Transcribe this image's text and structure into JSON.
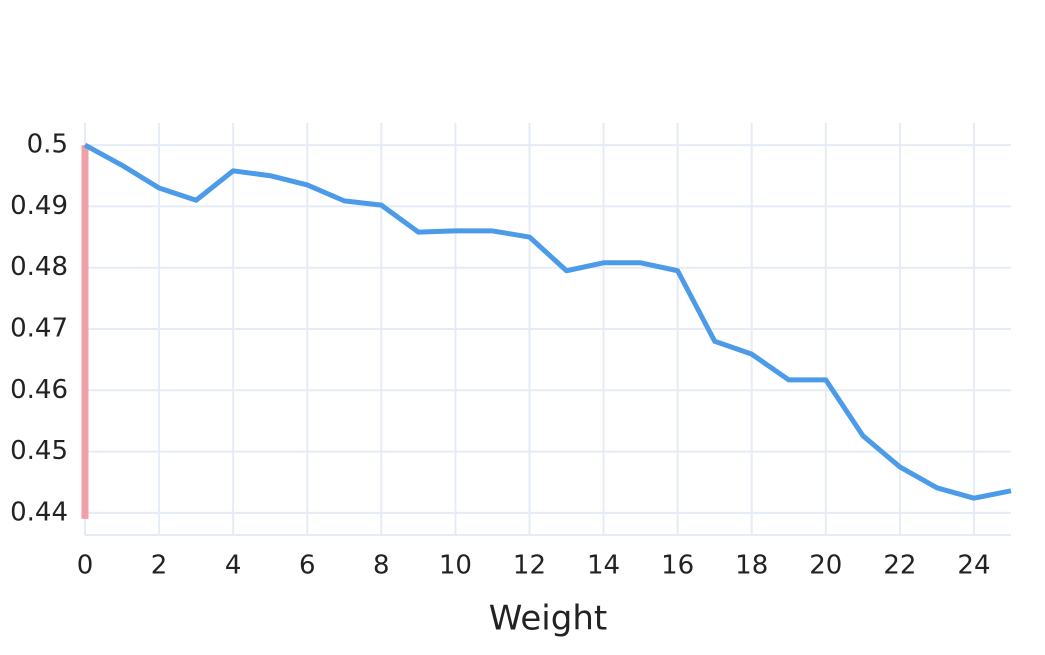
{
  "chart_data": {
    "type": "line",
    "x_label": "Weight",
    "x": [
      0,
      1,
      2,
      3,
      4,
      5,
      6,
      7,
      8,
      9,
      10,
      11,
      12,
      13,
      14,
      15,
      16,
      17,
      18,
      19,
      20,
      21,
      22,
      23,
      24,
      25
    ],
    "series": [
      {
        "color": "#4c9be8",
        "values": [
          0.5,
          0.4967,
          0.493,
          0.491,
          0.4958,
          0.495,
          0.4935,
          0.4909,
          0.4902,
          0.4858,
          0.486,
          0.486,
          0.485,
          0.4795,
          0.4808,
          0.4808,
          0.4795,
          0.468,
          0.4659,
          0.4617,
          0.4617,
          0.4526,
          0.4475,
          0.4441,
          0.4424,
          0.4436
        ]
      }
    ],
    "xlim": [
      0,
      25
    ],
    "xticks": [
      0,
      2,
      4,
      6,
      8,
      10,
      12,
      14,
      16,
      18,
      20,
      22,
      24
    ],
    "ylim": [
      0.4364,
      0.5036
    ],
    "yticks": [
      0.44,
      0.45,
      0.46,
      0.47,
      0.48,
      0.49,
      0.5
    ],
    "grid": true,
    "reference_color": "#f0a0a8"
  }
}
